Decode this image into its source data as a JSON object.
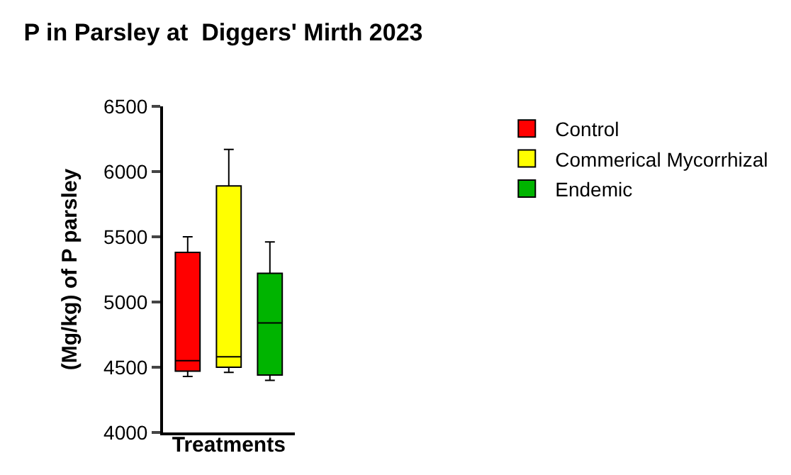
{
  "chart_data": {
    "type": "box",
    "title": "P in Parsley at  Diggers' Mirth 2023",
    "xlabel": "Treatments",
    "ylabel": "(Mg/kg) of P parsley",
    "categories": [
      null
    ],
    "series": [
      {
        "name": "Control",
        "color": "#ff0000",
        "boxes": [
          {
            "low": 4430,
            "q1": 4470,
            "median": 4550,
            "q3": 5380,
            "high": 5500
          }
        ]
      },
      {
        "name": "Commerical Mycorrhizal",
        "color": "#ffff00",
        "boxes": [
          {
            "low": 4460,
            "q1": 4500,
            "median": 4580,
            "q3": 5890,
            "high": 6170
          }
        ]
      },
      {
        "name": "Endemic",
        "color": "#00b400",
        "boxes": [
          {
            "low": 4400,
            "q1": 4440,
            "median": 4840,
            "q3": 5220,
            "high": 5460
          }
        ]
      }
    ],
    "ylim": [
      4000,
      6500
    ],
    "yticks": [
      4000,
      4500,
      5000,
      5500,
      6000,
      6500
    ],
    "legend": "right"
  }
}
